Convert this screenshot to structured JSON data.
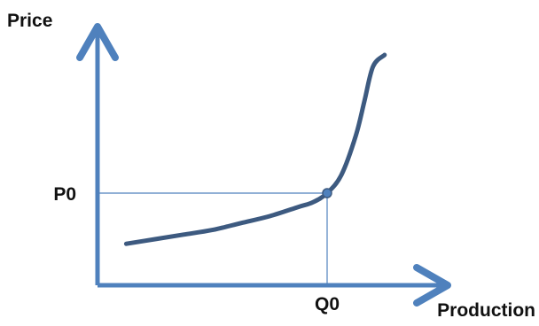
{
  "colors": {
    "axis": "#4f81bd",
    "curve": "#3d5a80",
    "guide": "#4f81bd",
    "text": "#111111"
  },
  "chart_data": {
    "type": "line",
    "title": "",
    "xlabel": "Production",
    "ylabel": "Price",
    "axis_ticks_shown": false,
    "grid": false,
    "legend": "none",
    "reference_point": {
      "x_label": "Q0",
      "y_label": "P0",
      "x": 0.8,
      "y": 0.4
    },
    "series": [
      {
        "x": [
          0.1,
          0.2,
          0.3,
          0.4,
          0.5,
          0.6,
          0.7,
          0.75,
          0.8,
          0.85,
          0.9,
          0.93,
          0.96,
          1.0
        ],
        "y": [
          0.18,
          0.2,
          0.22,
          0.24,
          0.27,
          0.3,
          0.34,
          0.36,
          0.4,
          0.48,
          0.65,
          0.8,
          0.95,
          1.0
        ]
      }
    ]
  }
}
